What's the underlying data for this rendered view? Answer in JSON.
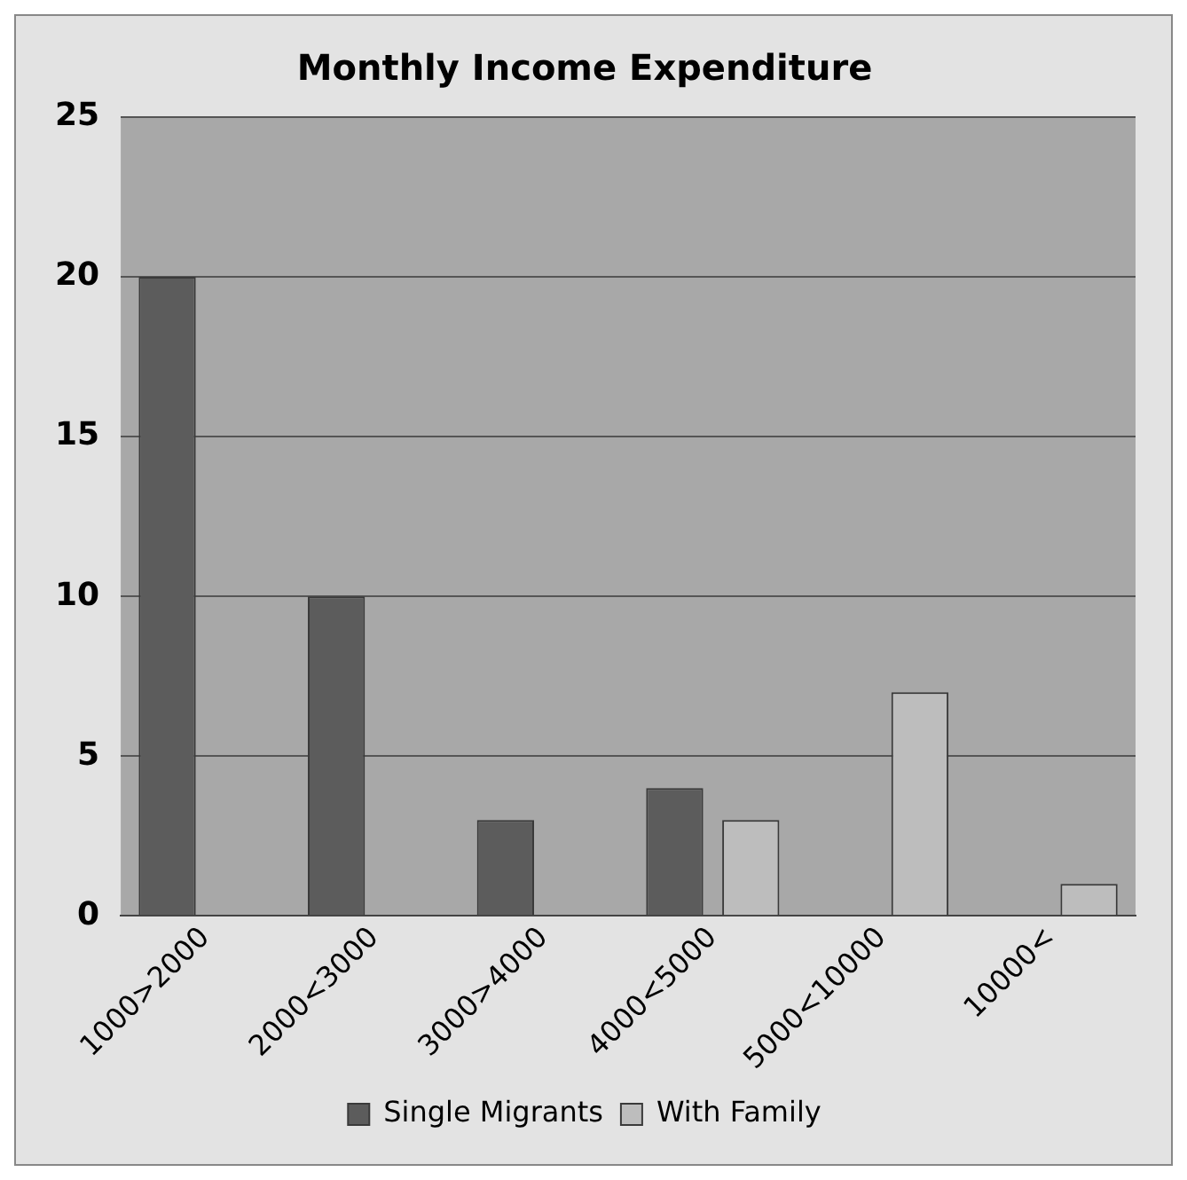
{
  "chart_data": {
    "type": "bar",
    "title": "Monthly Income Expenditure",
    "categories": [
      "1000>2000",
      "2000<3000",
      "3000>4000",
      "4000<5000",
      "5000<10000",
      "10000<"
    ],
    "series": [
      {
        "name": "Single Migrants",
        "color": "#5c5c5c",
        "values": [
          20,
          10,
          3,
          4,
          null,
          null
        ]
      },
      {
        "name": "With Family",
        "color": "#bdbdbd",
        "values": [
          null,
          null,
          null,
          3,
          7,
          1
        ]
      }
    ],
    "ylim": [
      0,
      25
    ],
    "yticks": [
      0,
      5,
      10,
      15,
      20,
      25
    ],
    "grid": "y",
    "legend": "bottom"
  }
}
